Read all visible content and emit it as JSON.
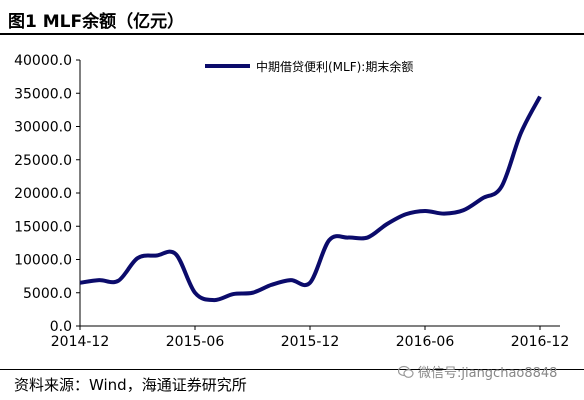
{
  "header": {
    "title": "图1  MLF余额（亿元）"
  },
  "footer": {
    "source": "资料来源：Wind，海通证券研究所",
    "wechat": "微信号:jiangchao8848"
  },
  "chart_data": {
    "type": "line",
    "title": "",
    "xlabel": "",
    "ylabel": "",
    "ylim": [
      0,
      40000
    ],
    "yticks": [
      "0.0",
      "5000.0",
      "10000.0",
      "15000.0",
      "20000.0",
      "25000.0",
      "30000.0",
      "35000.0",
      "40000.0"
    ],
    "xticks": [
      "2014-12",
      "2015-06",
      "2015-12",
      "2016-06",
      "2016-12"
    ],
    "legend": "top-center",
    "grid": false,
    "series": [
      {
        "name": "中期借贷便利(MLF):期末余额",
        "color": "#0b0b6b",
        "x": [
          "2014-12",
          "2015-01",
          "2015-02",
          "2015-03",
          "2015-04",
          "2015-05",
          "2015-06",
          "2015-07",
          "2015-08",
          "2015-09",
          "2015-10",
          "2015-11",
          "2015-12",
          "2016-01",
          "2016-02",
          "2016-03",
          "2016-04",
          "2016-05",
          "2016-06",
          "2016-07",
          "2016-08",
          "2016-09",
          "2016-10",
          "2016-11",
          "2016-12"
        ],
        "values": [
          6500,
          6900,
          6800,
          10200,
          10600,
          10800,
          5000,
          3900,
          4800,
          5000,
          6200,
          6900,
          6500,
          12900,
          13300,
          13300,
          15300,
          16800,
          17300,
          16900,
          17400,
          19200,
          21000,
          29000,
          34500
        ]
      }
    ]
  }
}
